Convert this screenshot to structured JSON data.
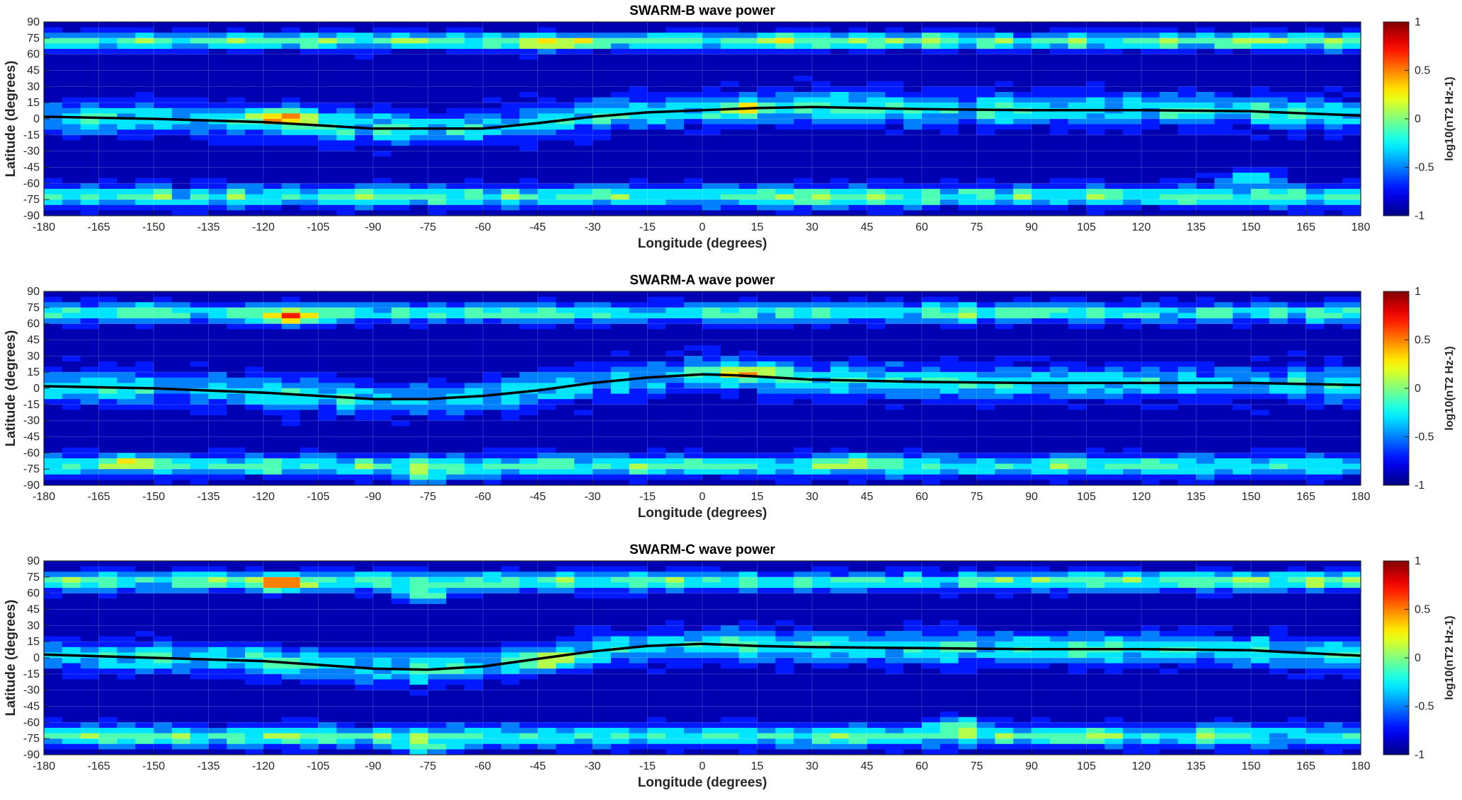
{
  "colors": {
    "colormap": "jet",
    "contour_line": "#000000",
    "equator_line": "#000000"
  },
  "chart_data": [
    {
      "type": "heatmap",
      "title": "SWARM-B wave power",
      "xlabel": "Longitude (degrees)",
      "ylabel": "Latitude (degrees)",
      "xlim": [
        -180,
        180
      ],
      "ylim": [
        -90,
        90
      ],
      "xticks": [
        "-180",
        "-165",
        "-150",
        "-135",
        "-120",
        "-105",
        "-90",
        "-75",
        "-60",
        "-45",
        "-30",
        "-15",
        "0",
        "15",
        "30",
        "45",
        "60",
        "75",
        "90",
        "105",
        "120",
        "135",
        "150",
        "165",
        "180"
      ],
      "yticks": [
        "90",
        "75",
        "60",
        "45",
        "30",
        "15",
        "0",
        "-15",
        "-30",
        "-45",
        "-60",
        "-75",
        "-90"
      ],
      "colorbar": {
        "label": "log10(nT2 Hz-1)",
        "ticks": [
          "1",
          "0.5",
          "0",
          "-0.5",
          "-1"
        ],
        "range": [
          -1,
          1
        ]
      },
      "grid": true,
      "bands": [
        {
          "lat": 72,
          "amp": 0.55,
          "width": 8
        },
        {
          "lat": 3,
          "amp": 0.35,
          "width": 15
        },
        {
          "lat": -72,
          "amp": 0.45,
          "width": 10
        }
      ],
      "hotspots": [
        {
          "lon": -115,
          "lat": 2,
          "amp": 0.9
        },
        {
          "lon": 150,
          "lat": -55,
          "amp": 0.8
        },
        {
          "lon": 12,
          "lat": 8,
          "amp": 0.4
        },
        {
          "lon": -40,
          "lat": 68,
          "amp": 0.5
        }
      ],
      "equator_curve": {
        "lon": [
          -180,
          -150,
          -120,
          -90,
          -60,
          -45,
          -30,
          -15,
          0,
          15,
          30,
          45,
          60,
          90,
          120,
          150,
          180
        ],
        "lat": [
          2,
          0,
          -3,
          -9,
          -9,
          -4,
          2,
          6,
          8,
          10,
          11,
          10,
          9,
          8,
          8,
          7,
          3
        ]
      }
    },
    {
      "type": "heatmap",
      "title": "SWARM-A wave power",
      "xlabel": "Longitude (degrees)",
      "ylabel": "Latitude (degrees)",
      "xlim": [
        -180,
        180
      ],
      "ylim": [
        -90,
        90
      ],
      "xticks": [
        "-180",
        "-165",
        "-150",
        "-135",
        "-120",
        "-105",
        "-90",
        "-75",
        "-60",
        "-45",
        "-30",
        "-15",
        "0",
        "15",
        "30",
        "45",
        "60",
        "75",
        "90",
        "105",
        "120",
        "135",
        "150",
        "165",
        "180"
      ],
      "yticks": [
        "90",
        "75",
        "60",
        "45",
        "30",
        "15",
        "0",
        "-15",
        "-30",
        "-45",
        "-60",
        "-75",
        "-90"
      ],
      "colorbar": {
        "label": "log10(nT2 Hz-1)",
        "ticks": [
          "1",
          "0.5",
          "0",
          "-0.5",
          "-1"
        ],
        "range": [
          -1,
          1
        ]
      },
      "grid": true,
      "bands": [
        {
          "lat": 70,
          "amp": 0.45,
          "width": 9
        },
        {
          "lat": 3,
          "amp": 0.3,
          "width": 16
        },
        {
          "lat": -72,
          "amp": 0.4,
          "width": 10
        }
      ],
      "hotspots": [
        {
          "lon": -112,
          "lat": 65,
          "amp": 0.85
        },
        {
          "lon": 12,
          "lat": 15,
          "amp": 0.85
        },
        {
          "lon": -155,
          "lat": -68,
          "amp": 0.8
        },
        {
          "lon": -75,
          "lat": -83,
          "amp": 0.6
        },
        {
          "lon": 42,
          "lat": -68,
          "amp": 0.5
        }
      ],
      "equator_curve": {
        "lon": [
          -180,
          -150,
          -120,
          -90,
          -75,
          -60,
          -45,
          -30,
          -15,
          0,
          10,
          30,
          60,
          90,
          120,
          150,
          180
        ],
        "lat": [
          2,
          0,
          -4,
          -10,
          -10,
          -7,
          -2,
          5,
          10,
          13,
          12,
          8,
          6,
          5,
          5,
          5,
          3
        ]
      }
    },
    {
      "type": "heatmap",
      "title": "SWARM-C wave power",
      "xlabel": "Longitude (degrees)",
      "ylabel": "Latitude (degrees)",
      "xlim": [
        -180,
        180
      ],
      "ylim": [
        -90,
        90
      ],
      "xticks": [
        "-180",
        "-165",
        "-150",
        "-135",
        "-120",
        "-105",
        "-90",
        "-75",
        "-60",
        "-45",
        "-30",
        "-15",
        "0",
        "15",
        "30",
        "45",
        "60",
        "75",
        "90",
        "105",
        "120",
        "135",
        "150",
        "165",
        "180"
      ],
      "yticks": [
        "90",
        "75",
        "60",
        "45",
        "30",
        "15",
        "0",
        "-15",
        "-30",
        "-45",
        "-60",
        "-75",
        "-90"
      ],
      "colorbar": {
        "label": "log10(nT2 Hz-1)",
        "ticks": [
          "1",
          "0.5",
          "0",
          "-0.5",
          "-1"
        ],
        "range": [
          -1,
          1
        ]
      },
      "grid": true,
      "bands": [
        {
          "lat": 71,
          "amp": 0.5,
          "width": 9
        },
        {
          "lat": 3,
          "amp": 0.35,
          "width": 15
        },
        {
          "lat": -73,
          "amp": 0.45,
          "width": 10
        }
      ],
      "hotspots": [
        {
          "lon": -77,
          "lat": 58,
          "amp": 0.85
        },
        {
          "lon": -115,
          "lat": 68,
          "amp": 0.7
        },
        {
          "lon": -40,
          "lat": -5,
          "amp": 0.45
        },
        {
          "lon": 70,
          "lat": -62,
          "amp": 0.75
        },
        {
          "lon": -75,
          "lat": -83,
          "amp": 0.55
        }
      ],
      "equator_curve": {
        "lon": [
          -180,
          -150,
          -120,
          -90,
          -75,
          -60,
          -45,
          -30,
          -15,
          0,
          15,
          30,
          60,
          90,
          120,
          150,
          180
        ],
        "lat": [
          3,
          0,
          -3,
          -10,
          -11,
          -8,
          -1,
          6,
          11,
          13,
          11,
          10,
          9,
          8,
          8,
          7,
          2
        ]
      }
    }
  ]
}
